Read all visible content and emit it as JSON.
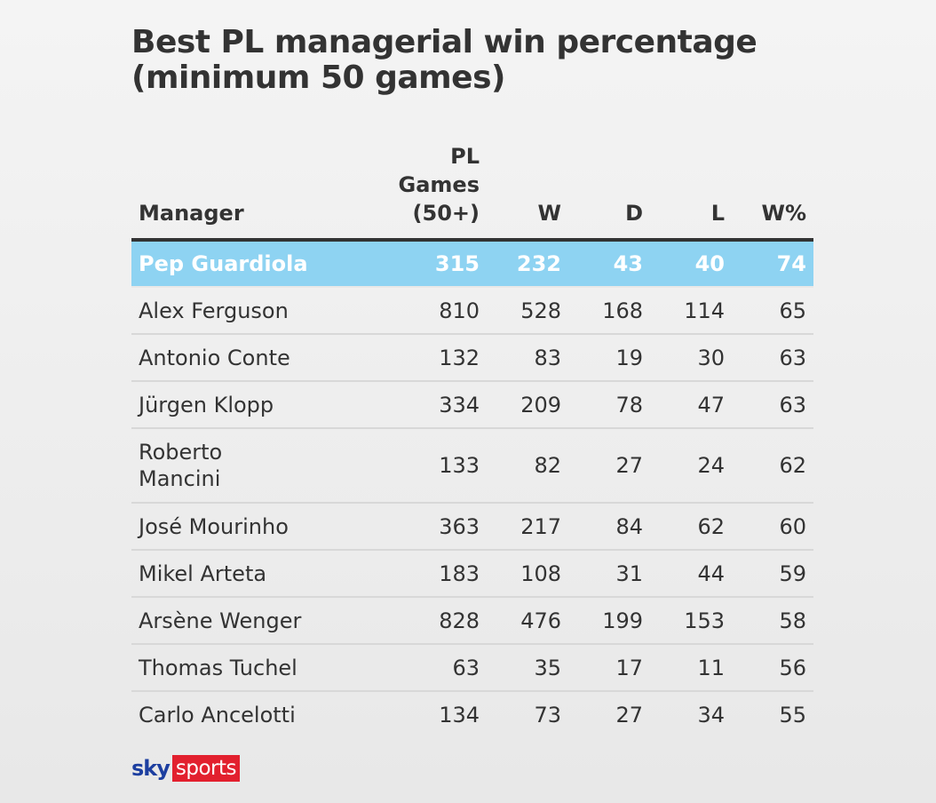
{
  "title": "Best PL managerial win percentage (minimum 50 games)",
  "chart_data": {
    "type": "table",
    "columns": [
      "Manager",
      "PL Games (50+)",
      "W",
      "D",
      "L",
      "W%"
    ],
    "header": {
      "manager": "Manager",
      "games_line1": "PL Games",
      "games_line2": "(50+)",
      "w": "W",
      "d": "D",
      "l": "L",
      "pct": "W%"
    },
    "highlight_color": "#8ed3f2",
    "rows": [
      {
        "name": "Pep Guardiola",
        "games": "315",
        "w": "232",
        "d": "43",
        "l": "40",
        "pct": "74",
        "highlight": true
      },
      {
        "name": "Alex Ferguson",
        "games": "810",
        "w": "528",
        "d": "168",
        "l": "114",
        "pct": "65",
        "highlight": false
      },
      {
        "name": "Antonio Conte",
        "games": "132",
        "w": "83",
        "d": "19",
        "l": "30",
        "pct": "63",
        "highlight": false
      },
      {
        "name": "Jürgen Klopp",
        "games": "334",
        "w": "209",
        "d": "78",
        "l": "47",
        "pct": "63",
        "highlight": false
      },
      {
        "name": "Roberto Mancini",
        "games": "133",
        "w": "82",
        "d": "27",
        "l": "24",
        "pct": "62",
        "highlight": false
      },
      {
        "name": "José Mourinho",
        "games": "363",
        "w": "217",
        "d": "84",
        "l": "62",
        "pct": "60",
        "highlight": false
      },
      {
        "name": "Mikel Arteta",
        "games": "183",
        "w": "108",
        "d": "31",
        "l": "44",
        "pct": "59",
        "highlight": false
      },
      {
        "name": "Arsène Wenger",
        "games": "828",
        "w": "476",
        "d": "199",
        "l": "153",
        "pct": "58",
        "highlight": false
      },
      {
        "name": "Thomas Tuchel",
        "games": "63",
        "w": "35",
        "d": "17",
        "l": "11",
        "pct": "56",
        "highlight": false
      },
      {
        "name": "Carlo Ancelotti",
        "games": "134",
        "w": "73",
        "d": "27",
        "l": "34",
        "pct": "55",
        "highlight": false
      }
    ]
  },
  "logo": {
    "sky": "sky",
    "sports": "sports",
    "sky_color": "#1d3fa0",
    "sports_color": "#e2202e"
  }
}
